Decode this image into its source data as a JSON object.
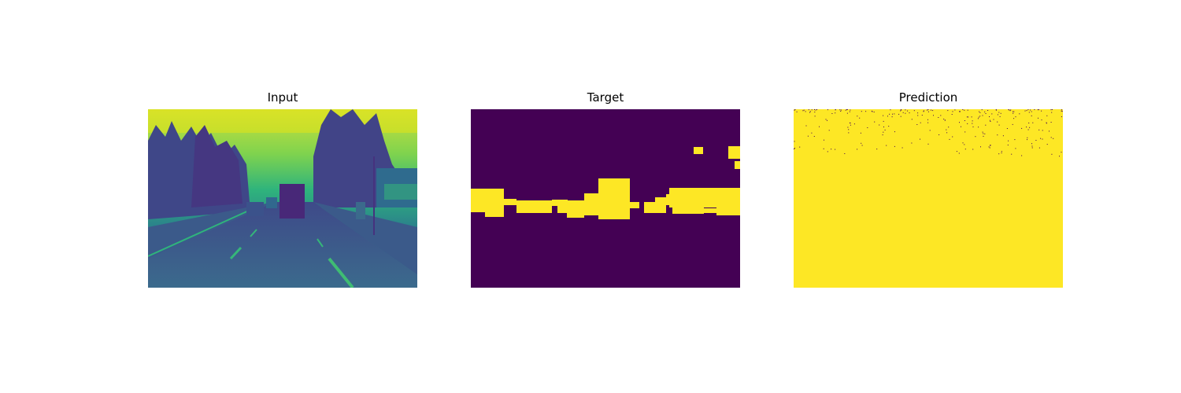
{
  "panels": [
    {
      "title": "Input"
    },
    {
      "title": "Target"
    },
    {
      "title": "Prediction"
    }
  ],
  "colormap": {
    "low": "#440154",
    "mid_low": "#3b528b",
    "mid": "#21918c",
    "mid_high": "#5ec962",
    "high": "#fde725"
  }
}
